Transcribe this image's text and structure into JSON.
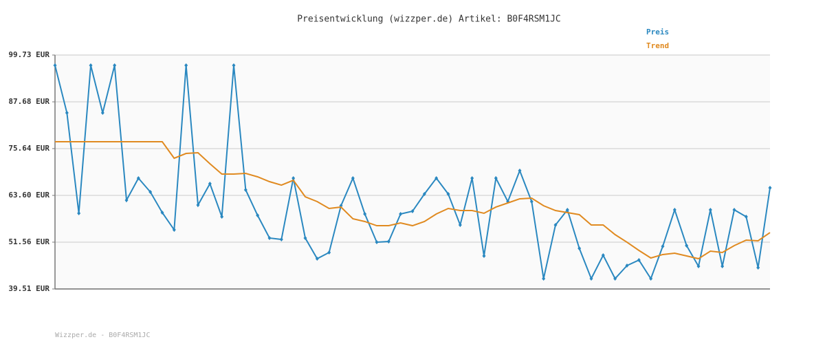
{
  "chart_data": {
    "type": "line",
    "title": "Preisentwicklung (wizzper.de) Artikel: B0F4RSM1JC",
    "footer": "Wizzper.de - B0F4RSM1JC",
    "legend": "top-right",
    "grid": true,
    "categories": [
      null,
      null,
      null,
      null,
      null,
      null,
      null,
      null,
      null,
      null,
      null,
      null,
      null,
      null,
      null,
      null,
      null,
      null,
      null,
      null,
      null,
      null,
      null,
      null,
      null,
      null,
      null,
      null,
      null,
      null,
      null,
      null,
      null,
      null,
      null,
      null,
      null,
      null,
      null,
      null,
      null,
      null,
      null,
      null,
      null,
      null,
      null,
      null,
      null,
      null,
      null,
      null,
      null,
      null,
      null,
      null,
      null,
      null,
      null,
      null,
      null
    ],
    "ylim": [
      39.51,
      99.73
    ],
    "yticks": [
      {
        "value": 39.51,
        "label": "39.51 EUR"
      },
      {
        "value": 51.56,
        "label": "51.56 EUR"
      },
      {
        "value": 63.6,
        "label": "63.60 EUR"
      },
      {
        "value": 75.64,
        "label": "75.64 EUR"
      },
      {
        "value": 87.68,
        "label": "87.68 EUR"
      },
      {
        "value": 99.73,
        "label": "99.73 EUR"
      }
    ],
    "series": [
      {
        "name": "Preis",
        "color": "#2a88c0",
        "markers": true,
        "values": [
          97.07,
          84.85,
          59.0,
          97.07,
          84.85,
          97.07,
          62.36,
          68.03,
          64.48,
          59.17,
          54.74,
          97.07,
          61.12,
          66.61,
          58.11,
          97.07,
          65.02,
          58.46,
          52.62,
          52.26,
          68.03,
          52.62,
          47.3,
          48.9,
          60.94,
          68.03,
          58.82,
          51.55,
          51.73,
          58.82,
          59.52,
          63.95,
          68.03,
          63.95,
          55.98,
          68.03,
          48.01,
          68.03,
          62.01,
          69.97,
          62.01,
          42.17,
          55.98,
          59.88,
          49.96,
          42.17,
          48.19,
          42.17,
          45.53,
          46.95,
          42.17,
          50.49,
          59.88,
          50.67,
          45.35,
          59.88,
          45.35,
          59.88,
          58.11,
          45.0,
          65.55
        ]
      },
      {
        "name": "Trend",
        "color": "#e08a20",
        "markers": false,
        "values": [
          77.41,
          77.41,
          77.41,
          77.41,
          77.41,
          77.41,
          77.41,
          77.41,
          77.41,
          77.41,
          73.16,
          74.4,
          74.58,
          71.75,
          69.09,
          69.09,
          69.26,
          68.38,
          67.14,
          66.25,
          67.49,
          63.24,
          62.01,
          60.23,
          60.59,
          57.58,
          56.87,
          55.8,
          55.8,
          56.51,
          55.8,
          56.87,
          58.82,
          60.23,
          59.7,
          59.7,
          59.0,
          60.59,
          61.65,
          62.72,
          62.89,
          60.94,
          59.7,
          59.17,
          58.64,
          55.98,
          55.98,
          53.5,
          51.55,
          49.43,
          47.48,
          48.37,
          48.72,
          48.01,
          47.3,
          49.25,
          48.9,
          50.67,
          52.09,
          51.91,
          54.03
        ]
      }
    ]
  }
}
